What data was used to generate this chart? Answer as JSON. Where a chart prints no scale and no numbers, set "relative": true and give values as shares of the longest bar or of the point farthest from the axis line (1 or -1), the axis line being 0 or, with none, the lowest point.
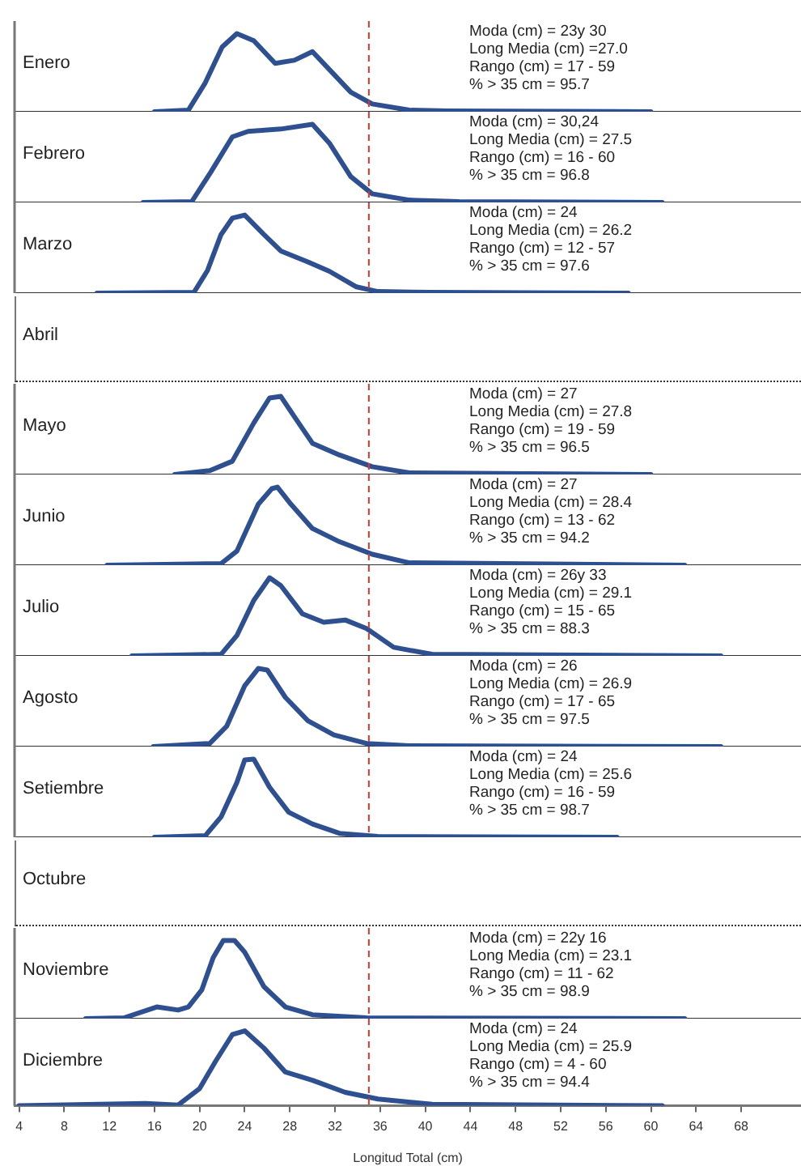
{
  "chart_data": [
    {
      "type": "line",
      "title": "Enero",
      "relative": true,
      "color": "#2e5090",
      "marker": "none",
      "tick_labels": false,
      "xlim": [
        3.6,
        73.3
      ],
      "x": [
        16,
        19,
        20.5,
        22,
        23.3,
        24.8,
        26.7,
        28.4,
        30,
        31.5,
        33.4,
        35.3,
        38.6,
        42,
        60
      ],
      "values": [
        0,
        0.02,
        0.37,
        0.83,
        1,
        0.91,
        0.62,
        0.66,
        0.77,
        0.54,
        0.25,
        0.1,
        0.02,
        0.01,
        0
      ],
      "ref_lines": [
        {
          "axis": "x",
          "value": 35,
          "color": "#e8322c",
          "line_style": "dashed"
        }
      ],
      "annotations": [
        "Moda (cm) = 23y 30",
        "Long Media (cm) =27.0",
        "Rango (cm) = 17 - 59",
        "% > 35 cm = 95.7"
      ]
    },
    {
      "type": "line",
      "title": "Febrero",
      "relative": true,
      "color": "#2e5090",
      "marker": "none",
      "tick_labels": false,
      "xlim": [
        3.6,
        73.3
      ],
      "x": [
        15,
        19.3,
        21,
        22.9,
        24.3,
        27.2,
        30,
        31.5,
        33.4,
        35.3,
        38.6,
        43,
        61
      ],
      "values": [
        0,
        0.01,
        0.39,
        0.84,
        0.91,
        0.94,
        1,
        0.76,
        0.33,
        0.11,
        0.03,
        0.01,
        0
      ],
      "ref_lines": [
        {
          "axis": "x",
          "value": 35,
          "color": "#e8322c",
          "line_style": "dashed"
        }
      ],
      "annotations": [
        "Moda (cm) = 30,24",
        "Long Media (cm) = 27.5",
        "Rango (cm) = 16 - 60",
        "% > 35 cm = 96.8"
      ]
    },
    {
      "type": "line",
      "title": "Marzo",
      "relative": true,
      "color": "#2e5090",
      "marker": "none",
      "tick_labels": false,
      "xlim": [
        3.6,
        73.3
      ],
      "x": [
        10.9,
        19.5,
        20.7,
        21.9,
        22.9,
        24,
        25.7,
        27.2,
        29.6,
        31.5,
        33.9,
        35.8,
        40.6,
        58
      ],
      "values": [
        0,
        0.01,
        0.29,
        0.75,
        0.96,
        1,
        0.75,
        0.54,
        0.4,
        0.28,
        0.08,
        0.02,
        0.01,
        0
      ],
      "ref_lines": [
        {
          "axis": "x",
          "value": 35,
          "color": "#e8322c",
          "line_style": "dashed"
        }
      ],
      "annotations": [
        "Moda (cm) = 24",
        "Long Media (cm) = 26.2",
        "Rango (cm) = 12 - 57",
        "% > 35 cm = 97.6"
      ]
    },
    {
      "type": "other",
      "title": "Abril"
    },
    {
      "type": "line",
      "title": "Mayo",
      "relative": true,
      "color": "#2e5090",
      "marker": "none",
      "tick_labels": false,
      "xlim": [
        3.6,
        73.3
      ],
      "x": [
        17.8,
        20.9,
        22.9,
        24.8,
        26.2,
        27.2,
        28.4,
        30,
        32.4,
        35.3,
        38.6,
        60
      ],
      "values": [
        0,
        0.05,
        0.17,
        0.66,
        0.98,
        1,
        0.74,
        0.4,
        0.25,
        0.1,
        0.02,
        0
      ],
      "ref_lines": [
        {
          "axis": "x",
          "value": 35,
          "color": "#e8322c",
          "line_style": "dashed"
        }
      ],
      "annotations": [
        "Moda (cm) = 27",
        "Long Media (cm) = 27.8",
        "Rango (cm) = 19 - 59",
        "% > 35 cm = 96.5"
      ]
    },
    {
      "type": "line",
      "title": "Junio",
      "relative": true,
      "color": "#2e5090",
      "marker": "none",
      "tick_labels": false,
      "xlim": [
        3.6,
        73.3
      ],
      "x": [
        11.8,
        21.9,
        23.3,
        25.2,
        26.4,
        26.9,
        28.1,
        30,
        32.4,
        35.3,
        38.6,
        63
      ],
      "values": [
        0,
        0.02,
        0.18,
        0.78,
        0.98,
        1,
        0.78,
        0.47,
        0.3,
        0.14,
        0.03,
        0
      ],
      "ref_lines": [
        {
          "axis": "x",
          "value": 35,
          "color": "#e8322c",
          "line_style": "dashed"
        }
      ],
      "annotations": [
        "Moda (cm) = 27",
        "Long Media (cm) = 28.4",
        "Rango (cm) = 13 - 62",
        "% > 35 cm = 94.2"
      ]
    },
    {
      "type": "line",
      "title": "Julio",
      "relative": true,
      "color": "#2e5090",
      "marker": "none",
      "tick_labels": false,
      "xlim": [
        3.6,
        73.3
      ],
      "x": [
        14,
        21.9,
        23.3,
        24.8,
        26.2,
        27.2,
        29.1,
        31,
        32.9,
        34.8,
        37.2,
        40.6,
        66.2
      ],
      "values": [
        0,
        0.02,
        0.26,
        0.71,
        1,
        0.9,
        0.54,
        0.43,
        0.46,
        0.35,
        0.11,
        0.02,
        0
      ],
      "ref_lines": [
        {
          "axis": "x",
          "value": 35,
          "color": "#e8322c",
          "line_style": "dashed"
        }
      ],
      "annotations": [
        "Moda (cm) = 26y 33",
        "Long Media (cm) = 29.1",
        "Rango (cm) = 15 - 65",
        "% > 35 cm = 88.3"
      ]
    },
    {
      "type": "line",
      "title": "Agosto",
      "relative": true,
      "color": "#2e5090",
      "marker": "none",
      "tick_labels": false,
      "xlim": [
        3.6,
        73.3
      ],
      "x": [
        15.9,
        20.9,
        22.4,
        24,
        25.2,
        26,
        27.6,
        29.6,
        31.9,
        34.8,
        38.6,
        66.2
      ],
      "values": [
        0,
        0.04,
        0.26,
        0.78,
        1,
        0.98,
        0.63,
        0.33,
        0.15,
        0.04,
        0.01,
        0
      ],
      "ref_lines": [
        {
          "axis": "x",
          "value": 35,
          "color": "#e8322c",
          "line_style": "dashed"
        }
      ],
      "annotations": [
        "Moda (cm) = 26",
        "Long Media (cm) = 26.9",
        "Rango (cm) = 17 - 65",
        "% > 35 cm = 97.5"
      ]
    },
    {
      "type": "line",
      "title": "Setiembre",
      "relative": true,
      "color": "#2e5090",
      "marker": "none",
      "tick_labels": false,
      "xlim": [
        3.6,
        73.3
      ],
      "x": [
        16,
        20.5,
        21.9,
        23.3,
        24,
        24.8,
        26.2,
        27.9,
        30,
        32.4,
        35.8,
        57
      ],
      "values": [
        0,
        0.02,
        0.26,
        0.7,
        0.99,
        1,
        0.64,
        0.32,
        0.17,
        0.05,
        0.01,
        0
      ],
      "ref_lines": [
        {
          "axis": "x",
          "value": 35,
          "color": "#e8322c",
          "line_style": "dashed"
        }
      ],
      "annotations": [
        "Moda (cm) = 24",
        "Long Media (cm) = 25.6",
        "Rango (cm) = 16 - 59",
        "% > 35 cm = 98.7"
      ]
    },
    {
      "type": "other",
      "title": "Octubre"
    },
    {
      "type": "line",
      "title": "Noviembre",
      "relative": true,
      "color": "#2e5090",
      "marker": "none",
      "tick_labels": false,
      "xlim": [
        3.6,
        73.3
      ],
      "x": [
        9.9,
        13.3,
        16.2,
        18.1,
        19,
        20.2,
        21.2,
        22.1,
        23.1,
        24,
        25.7,
        27.6,
        30,
        34.8,
        63
      ],
      "values": [
        0,
        0.01,
        0.15,
        0.11,
        0.15,
        0.37,
        0.78,
        1,
        1,
        0.85,
        0.41,
        0.15,
        0.05,
        0.01,
        0
      ],
      "ref_lines": [
        {
          "axis": "x",
          "value": 35,
          "color": "#e8322c",
          "line_style": "dashed"
        }
      ],
      "annotations": [
        "Moda (cm) = 22y 16",
        "Long Media (cm) = 23.1",
        "Rango (cm) = 11 - 62",
        "% > 35 cm = 98.9"
      ]
    },
    {
      "type": "line",
      "title": "Diciembre",
      "relative": true,
      "color": "#2e5090",
      "marker": "none",
      "tick_labels": "x",
      "xlim": [
        3.6,
        73.3
      ],
      "xticks": [
        4,
        8,
        12,
        16,
        20,
        24,
        28,
        32,
        36,
        40,
        44,
        48,
        52,
        56,
        60,
        64,
        68
      ],
      "xlabel": "Longitud Total (cm)",
      "x": [
        4,
        15.2,
        18.1,
        20,
        21.4,
        22.9,
        24,
        25.7,
        27.6,
        30,
        32.9,
        35.8,
        40.6,
        61
      ],
      "values": [
        0,
        0.03,
        0.01,
        0.23,
        0.59,
        0.95,
        1,
        0.77,
        0.45,
        0.34,
        0.18,
        0.09,
        0.02,
        0
      ],
      "ref_lines": [
        {
          "axis": "x",
          "value": 35,
          "color": "#e8322c",
          "line_style": "dashed"
        }
      ],
      "annotations": [
        "Moda (cm) = 24",
        "Long Media (cm) = 25.9",
        "Rango (cm) = 4 - 60",
        "% > 35 cm = 94.4"
      ]
    }
  ]
}
